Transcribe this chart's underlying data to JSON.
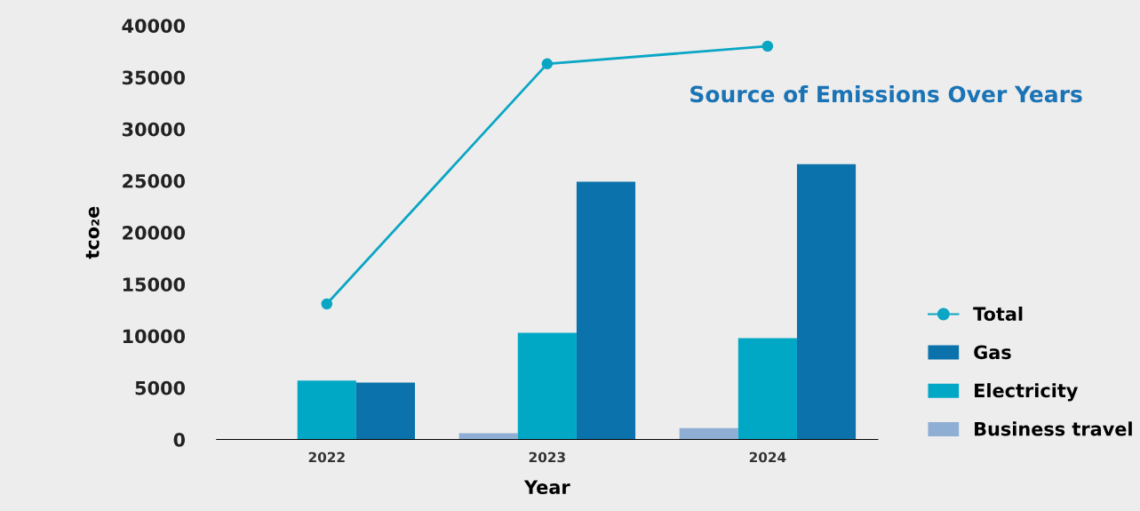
{
  "chart_data": {
    "type": "bar",
    "title": "Source of Emissions Over Years",
    "xlabel": "Year",
    "ylabel": "tco₂e",
    "categories": [
      "2022",
      "2023",
      "2024"
    ],
    "series": [
      {
        "name": "Business travel",
        "color": "#8eaed4",
        "values": [
          null,
          600,
          1100
        ]
      },
      {
        "name": "Electricity",
        "color": "#00a8c6",
        "values": [
          5700,
          10300,
          9800
        ]
      },
      {
        "name": "Gas",
        "color": "#0b72ab",
        "values": [
          5500,
          24900,
          26600
        ]
      },
      {
        "name": "Total",
        "type": "line",
        "color": "#0aa6c4",
        "values": [
          13100,
          36300,
          38000
        ]
      }
    ],
    "ylim": [
      0,
      40000
    ],
    "yticks": [
      0,
      5000,
      10000,
      15000,
      20000,
      25000,
      30000,
      35000,
      40000
    ],
    "grid": false,
    "legend": "right",
    "marker": "circle"
  }
}
